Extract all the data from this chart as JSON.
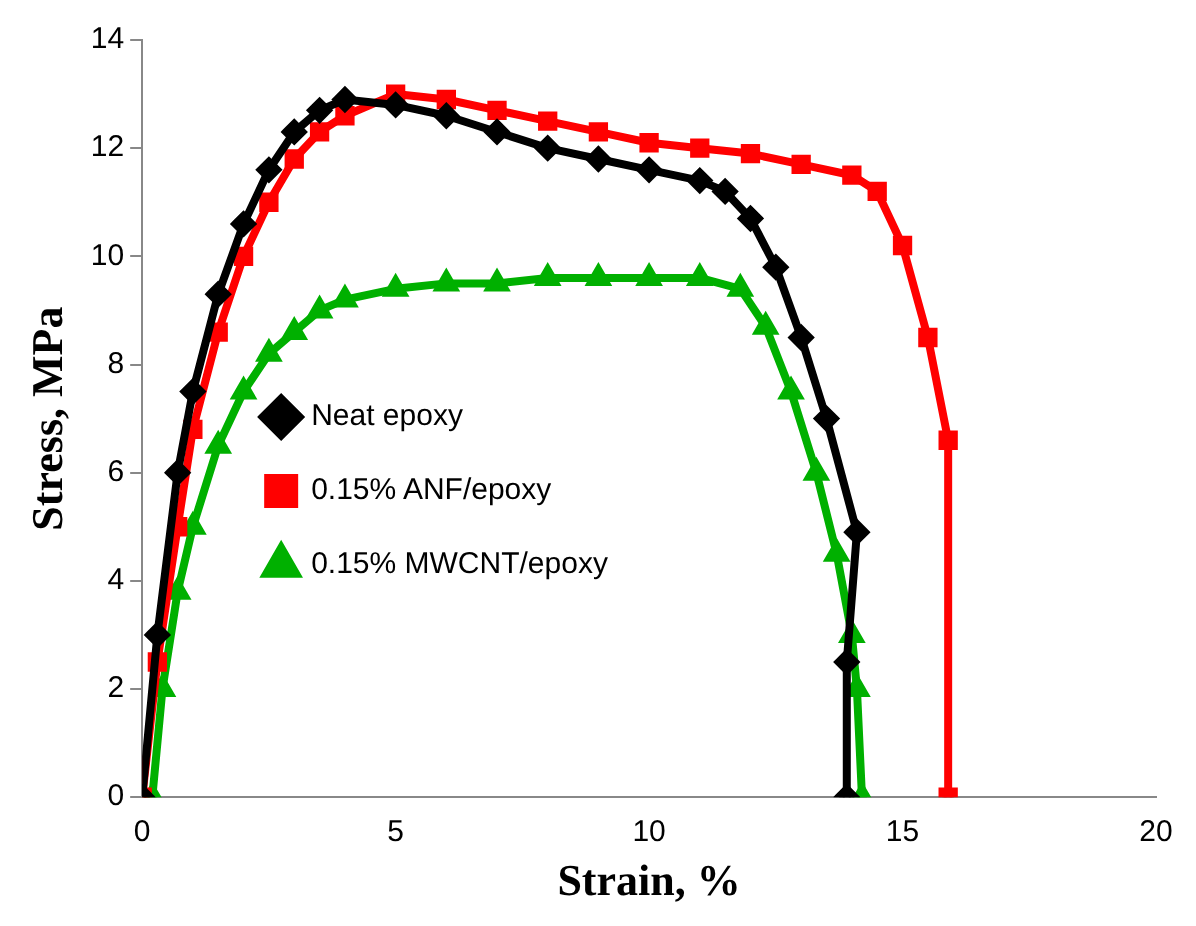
{
  "chart_data": {
    "type": "line",
    "xlabel": "Strain, %",
    "ylabel": "Stress, MPa",
    "xlim": [
      0,
      20
    ],
    "xticks": [
      0,
      5,
      10,
      15,
      20
    ],
    "ylim": [
      0,
      14
    ],
    "yticks": [
      0,
      2,
      4,
      6,
      8,
      10,
      12,
      14
    ],
    "grid": false,
    "legend": "left",
    "series": [
      {
        "name": "Neat epoxy",
        "color": "#000000",
        "marker": "diamond",
        "x": [
          0,
          0.3,
          0.7,
          1,
          1.5,
          2,
          2.5,
          3,
          3.5,
          4,
          5,
          6,
          7,
          8,
          9,
          10,
          11,
          11.5,
          12,
          12.5,
          13,
          13.5,
          14.1,
          13.9,
          13.9
        ],
        "values": [
          0,
          3,
          6,
          7.5,
          9.3,
          10.6,
          11.6,
          12.3,
          12.7,
          12.9,
          12.8,
          12.6,
          12.3,
          12,
          11.8,
          11.6,
          11.4,
          11.2,
          10.7,
          9.8,
          8.5,
          7,
          4.9,
          2.5,
          0
        ]
      },
      {
        "name": "0.15% ANF/epoxy",
        "color": "#ff0000",
        "marker": "square",
        "x": [
          0,
          0.3,
          0.7,
          1,
          1.5,
          2,
          2.5,
          3,
          3.5,
          4,
          5,
          6,
          7,
          8,
          9,
          10,
          11,
          12,
          13,
          14,
          14.5,
          15,
          15.5,
          15.9,
          15.9
        ],
        "values": [
          0,
          2.5,
          5,
          6.8,
          8.6,
          10,
          11,
          11.8,
          12.3,
          12.6,
          13,
          12.9,
          12.7,
          12.5,
          12.3,
          12.1,
          12,
          11.9,
          11.7,
          11.5,
          11.2,
          10.2,
          8.5,
          6.6,
          0
        ]
      },
      {
        "name": "0.15% MWCNT/epoxy",
        "color": "#00b000",
        "marker": "triangle",
        "x": [
          0.2,
          0.4,
          0.7,
          1,
          1.5,
          2,
          2.5,
          3,
          3.5,
          4,
          5,
          6,
          7,
          8,
          9,
          10,
          11,
          11.8,
          12.3,
          12.8,
          13.3,
          13.7,
          14,
          14.1,
          14.2
        ],
        "values": [
          0,
          2,
          3.8,
          5,
          6.5,
          7.5,
          8.2,
          8.6,
          9,
          9.2,
          9.4,
          9.5,
          9.5,
          9.6,
          9.6,
          9.6,
          9.6,
          9.4,
          8.7,
          7.5,
          6,
          4.5,
          3,
          2,
          0
        ]
      }
    ]
  }
}
